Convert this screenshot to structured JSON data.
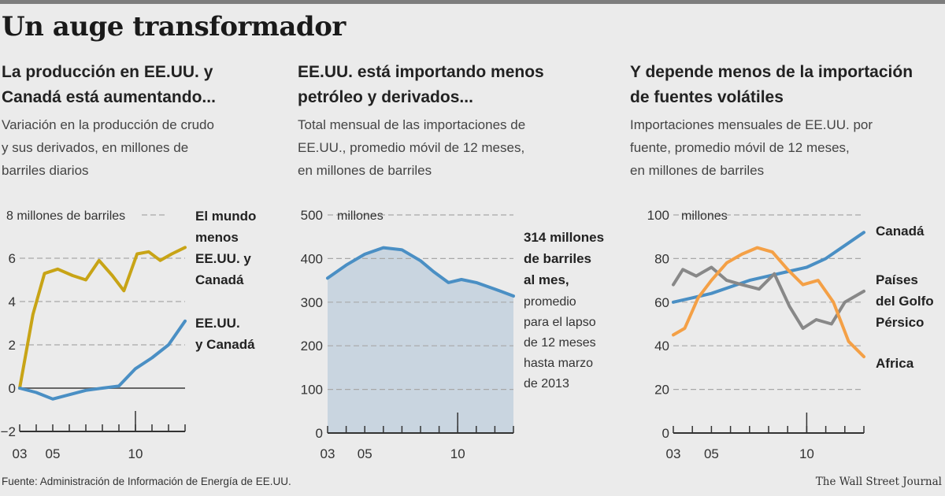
{
  "title": "Un auge transformador",
  "source": "Fuente: Administración de Información de Energía de EE.UU.",
  "credit": "The Wall Street Journal",
  "colors": {
    "gold": "#c8a416",
    "blue": "#4a8fc4",
    "orange": "#f4a046",
    "gray": "#888888",
    "area": "#c9d5e0"
  },
  "chart_data": [
    {
      "type": "line",
      "heading": [
        "La producción en EE.UU. y",
        "Canadá está aumentando..."
      ],
      "subtitle": [
        "Variación en la producción de crudo",
        "y sus derivados, en millones de",
        "barriles diarios"
      ],
      "unit_label": "8 millones de barriles",
      "ylim": [
        -2,
        8
      ],
      "yticks": [
        -2,
        0,
        2,
        4,
        6
      ],
      "xticks": [
        {
          "x": 2003,
          "label": "03"
        },
        {
          "x": 2005,
          "label": "05"
        },
        {
          "x": 2010,
          "label": "10"
        }
      ],
      "xlim": [
        2003,
        2013
      ],
      "series": [
        {
          "name": "El mundo menos EE.UU. y Canadá",
          "label_lines": [
            "El mundo",
            "menos",
            "EE.UU. y",
            "Canadá"
          ],
          "color_key": "gold",
          "x": [
            2003,
            2003.8,
            2004.5,
            2005.3,
            2006.2,
            2007,
            2007.8,
            2008.6,
            2009.3,
            2010.1,
            2010.8,
            2011.5,
            2012.2,
            2013
          ],
          "y": [
            0,
            3.4,
            5.3,
            5.5,
            5.2,
            5.0,
            5.9,
            5.2,
            4.5,
            6.2,
            6.3,
            5.9,
            6.2,
            6.5
          ]
        },
        {
          "name": "EE.UU. y Canadá",
          "label_lines": [
            "EE.UU.",
            "y Canadá"
          ],
          "color_key": "blue",
          "x": [
            2003,
            2004,
            2005,
            2006,
            2007,
            2008,
            2009,
            2010,
            2011,
            2012,
            2013
          ],
          "y": [
            0,
            -0.2,
            -0.5,
            -0.3,
            -0.1,
            0.0,
            0.1,
            0.9,
            1.4,
            2.0,
            3.1
          ]
        }
      ]
    },
    {
      "type": "area",
      "heading": [
        "EE.UU. está importando menos",
        "petróleo y derivados..."
      ],
      "subtitle": [
        "Total mensual de las importaciones de",
        "EE.UU., promedio móvil de 12 meses,",
        "en millones de barriles"
      ],
      "unit_label": "millones",
      "ylim": [
        0,
        500
      ],
      "yticks": [
        0,
        100,
        200,
        300,
        400,
        500
      ],
      "xticks": [
        {
          "x": 2003,
          "label": "03"
        },
        {
          "x": 2005,
          "label": "05"
        },
        {
          "x": 2010,
          "label": "10"
        }
      ],
      "xlim": [
        2003,
        2013
      ],
      "annotation": {
        "bold_lines": [
          "314 millones",
          "de barriles",
          "al mes,"
        ],
        "lines": [
          "promedio",
          "para el lapso",
          "de 12 meses",
          "hasta marzo",
          "de 2013"
        ]
      },
      "series": [
        {
          "name": "Importaciones",
          "color_key": "blue",
          "x": [
            2003,
            2004,
            2005,
            2006,
            2007,
            2008,
            2008.7,
            2009.5,
            2010.2,
            2011,
            2012,
            2013
          ],
          "y": [
            355,
            385,
            410,
            425,
            420,
            395,
            370,
            345,
            352,
            345,
            330,
            314
          ]
        }
      ]
    },
    {
      "type": "line",
      "heading": [
        "Y depende menos de la importación",
        "de fuentes volátiles"
      ],
      "subtitle": [
        "Importaciones mensuales de EE.UU. por",
        "fuente, promedio móvil de 12 meses,",
        "en millones de barriles"
      ],
      "unit_label": "millones",
      "ylim": [
        0,
        100
      ],
      "yticks": [
        0,
        20,
        40,
        60,
        80,
        100
      ],
      "xticks": [
        {
          "x": 2003,
          "label": "03"
        },
        {
          "x": 2005,
          "label": "05"
        },
        {
          "x": 2010,
          "label": "10"
        }
      ],
      "xlim": [
        2003,
        2013
      ],
      "series": [
        {
          "name": "Canadá",
          "label_lines": [
            "Canadá"
          ],
          "color_key": "blue",
          "x": [
            2003,
            2004,
            2005,
            2006,
            2007,
            2008,
            2009,
            2010,
            2011,
            2012,
            2013
          ],
          "y": [
            60,
            62,
            64,
            67,
            70,
            72,
            74,
            76,
            80,
            86,
            92
          ]
        },
        {
          "name": "Países del Golfo Pérsico",
          "label_lines": [
            "Países",
            "del Golfo",
            "Pérsico"
          ],
          "color_key": "gray",
          "x": [
            2003,
            2003.5,
            2004.2,
            2005,
            2005.8,
            2006.6,
            2007.5,
            2008.3,
            2009.1,
            2009.8,
            2010.5,
            2011.3,
            2012,
            2013
          ],
          "y": [
            68,
            75,
            72,
            76,
            70,
            68,
            66,
            73,
            58,
            48,
            52,
            50,
            60,
            65
          ]
        },
        {
          "name": "Africa",
          "label_lines": [
            "Africa"
          ],
          "color_key": "orange",
          "x": [
            2003,
            2003.6,
            2004.3,
            2005,
            2005.8,
            2006.6,
            2007.4,
            2008.2,
            2009,
            2009.8,
            2010.6,
            2011.4,
            2012.2,
            2013
          ],
          "y": [
            45,
            48,
            62,
            70,
            78,
            82,
            85,
            83,
            75,
            68,
            70,
            60,
            42,
            35
          ]
        }
      ]
    }
  ]
}
